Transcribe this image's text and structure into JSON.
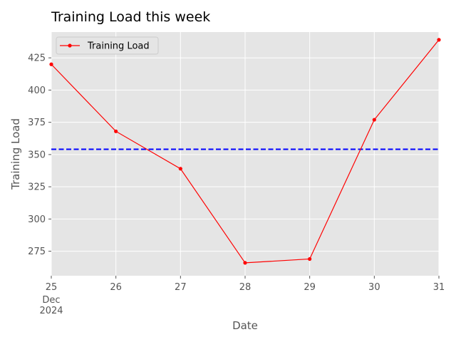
{
  "chart_data": {
    "type": "line",
    "title": "Training Load this week",
    "xlabel": "Date",
    "ylabel": "Training Load",
    "x": [
      "2024-12-25",
      "2024-12-26",
      "2024-12-27",
      "2024-12-28",
      "2024-12-29",
      "2024-12-30",
      "2024-12-31"
    ],
    "x_tick_labels": [
      "25",
      "26",
      "27",
      "28",
      "29",
      "30",
      "31"
    ],
    "x_tick_secondary": [
      "Dec",
      "2024"
    ],
    "series": [
      {
        "name": "Training Load",
        "color": "#ff0000",
        "values": [
          420,
          368,
          339,
          266,
          269,
          377,
          439
        ]
      }
    ],
    "reference_line": {
      "value": 354.1,
      "color": "#0000ff",
      "style": "dashed"
    },
    "ylim": [
      256,
      445
    ],
    "y_ticks": [
      275,
      300,
      325,
      350,
      375,
      400,
      425
    ],
    "grid": true,
    "legend_position": "top-left",
    "background_color": "#e5e5e5"
  }
}
